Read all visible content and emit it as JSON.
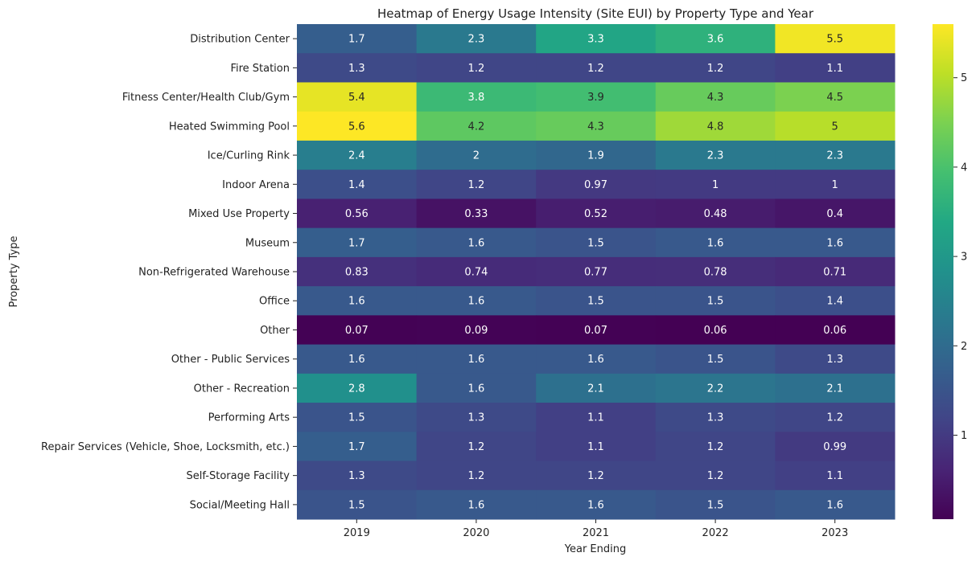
{
  "chart_data": {
    "type": "heatmap",
    "title": "Heatmap of Energy Usage Intensity (Site EUI) by Property Type and Year",
    "xlabel": "Year Ending",
    "ylabel": "Property Type",
    "x_categories": [
      "2019",
      "2020",
      "2021",
      "2022",
      "2023"
    ],
    "y_categories": [
      "Distribution Center",
      "Fire Station",
      "Fitness Center/Health Club/Gym",
      "Heated Swimming Pool",
      "Ice/Curling Rink",
      "Indoor Arena",
      "Mixed Use Property",
      "Museum",
      "Non-Refrigerated Warehouse",
      "Office",
      "Other",
      "Other - Public Services",
      "Other - Recreation",
      "Performing Arts",
      "Repair Services (Vehicle, Shoe, Locksmith, etc.)",
      "Self-Storage Facility",
      "Social/Meeting Hall"
    ],
    "values": [
      [
        1.7,
        2.3,
        3.3,
        3.6,
        5.5
      ],
      [
        1.3,
        1.2,
        1.2,
        1.2,
        1.1
      ],
      [
        5.4,
        3.8,
        3.9,
        4.3,
        4.5
      ],
      [
        5.6,
        4.2,
        4.3,
        4.8,
        5
      ],
      [
        2.4,
        2,
        1.9,
        2.3,
        2.3
      ],
      [
        1.4,
        1.2,
        0.97,
        1,
        1
      ],
      [
        0.56,
        0.33,
        0.52,
        0.48,
        0.4
      ],
      [
        1.7,
        1.6,
        1.5,
        1.6,
        1.6
      ],
      [
        0.83,
        0.74,
        0.77,
        0.78,
        0.71
      ],
      [
        1.6,
        1.6,
        1.5,
        1.5,
        1.4
      ],
      [
        0.07,
        0.09,
        0.07,
        0.06,
        0.06
      ],
      [
        1.6,
        1.6,
        1.6,
        1.5,
        1.3
      ],
      [
        2.8,
        1.6,
        2.1,
        2.2,
        2.1
      ],
      [
        1.5,
        1.3,
        1.1,
        1.3,
        1.2
      ],
      [
        1.7,
        1.2,
        1.1,
        1.2,
        0.99
      ],
      [
        1.3,
        1.2,
        1.2,
        1.2,
        1.1
      ],
      [
        1.5,
        1.6,
        1.6,
        1.5,
        1.6
      ]
    ],
    "colormap": "viridis",
    "vmin": 0.06,
    "vmax": 5.6,
    "colorbar_ticks": [
      "1",
      "2",
      "3",
      "4",
      "5"
    ],
    "annotations": "cell values"
  }
}
